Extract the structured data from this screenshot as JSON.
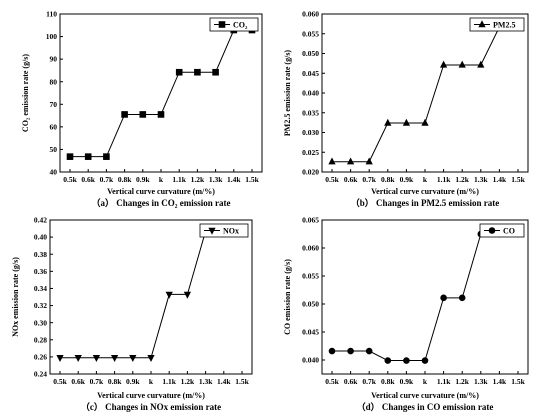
{
  "chart_data": [
    {
      "type": "line",
      "categories": [
        "0.5k",
        "0.6k",
        "0.7k",
        "0.8k",
        "0.9k",
        "k",
        "1.1k",
        "1.2k",
        "1.3k",
        "1.4k",
        "1.5k"
      ],
      "series": [
        {
          "name": "CO₂",
          "values": [
            46.8,
            46.8,
            46.8,
            65.5,
            65.5,
            65.5,
            84.2,
            84.2,
            84.2,
            102.9,
            102.9
          ]
        }
      ],
      "ylim": [
        40,
        110
      ],
      "yticks": [
        "40",
        "50",
        "60",
        "70",
        "80",
        "90",
        "100",
        "110"
      ],
      "xlabel": "Vertical curve curvature (m/%)",
      "ylabel": "CO₂ emission rate (g/s)",
      "caption": "（a） Changes in CO₂ emission rate",
      "marker": "square",
      "legend": "top-right",
      "grid": false
    },
    {
      "type": "line",
      "categories": [
        "0.5k",
        "0.6k",
        "0.7k",
        "0.8k",
        "0.9k",
        "k",
        "1.1k",
        "1.2k",
        "1.3k",
        "1.4k",
        "1.5k"
      ],
      "series": [
        {
          "name": "PM2.5",
          "values": [
            0.0226,
            0.0226,
            0.0226,
            0.0324,
            0.0324,
            0.0324,
            0.0471,
            0.0471,
            0.0471,
            0.0567,
            0.0567
          ]
        }
      ],
      "ylim": [
        0.02,
        0.06
      ],
      "yticks": [
        "0.020",
        "0.025",
        "0.030",
        "0.035",
        "0.040",
        "0.045",
        "0.050",
        "0.055",
        "0.060"
      ],
      "xlabel": "Vertical curve curvature (m/%)",
      "ylabel": "PM2.5 emission rate (g/s)",
      "caption": "（b） Changes in PM2.5 emission rate",
      "marker": "triangle-up",
      "legend": "top-right",
      "grid": false
    },
    {
      "type": "line",
      "categories": [
        "0.5k",
        "0.6k",
        "0.7k",
        "0.8k",
        "0.9k",
        "k",
        "1.1k",
        "1.2k",
        "1.3k",
        "1.4k",
        "1.5k"
      ],
      "series": [
        {
          "name": "NOx",
          "values": [
            0.259,
            0.259,
            0.259,
            0.259,
            0.259,
            0.259,
            0.333,
            0.333,
            0.407,
            0.407,
            0.407
          ]
        }
      ],
      "ylim": [
        0.24,
        0.42
      ],
      "yticks": [
        "0.24",
        "0.26",
        "0.28",
        "0.30",
        "0.32",
        "0.34",
        "0.36",
        "0.38",
        "0.40",
        "0.42"
      ],
      "xlabel": "Vertical curve curvature (m/%)",
      "ylabel": "NOx emission rate (g/s)",
      "caption": "（c） Changes in NOx emission rate",
      "marker": "triangle-down",
      "legend": "top-right",
      "grid": false
    },
    {
      "type": "line",
      "categories": [
        "0.5k",
        "0.6k",
        "0.7k",
        "0.8k",
        "0.9k",
        "k",
        "1.1k",
        "1.2k",
        "1.3k",
        "1.4k",
        "1.5k"
      ],
      "series": [
        {
          "name": "CO",
          "values": [
            0.0416,
            0.0416,
            0.0416,
            0.0399,
            0.0399,
            0.0399,
            0.0511,
            0.0511,
            0.0625,
            0.0625,
            0.0625
          ]
        }
      ],
      "ylim": [
        0.0375,
        0.065
      ],
      "yticks": [
        "0.040",
        "0.045",
        "0.050",
        "0.055",
        "0.060",
        "0.065"
      ],
      "xlabel": "Vertical curve curvature (m/%)",
      "ylabel": "CO emission rate (g/s)",
      "caption": "（d） Changes in CO emission rate",
      "marker": "circle",
      "legend": "top-right",
      "grid": false
    }
  ]
}
